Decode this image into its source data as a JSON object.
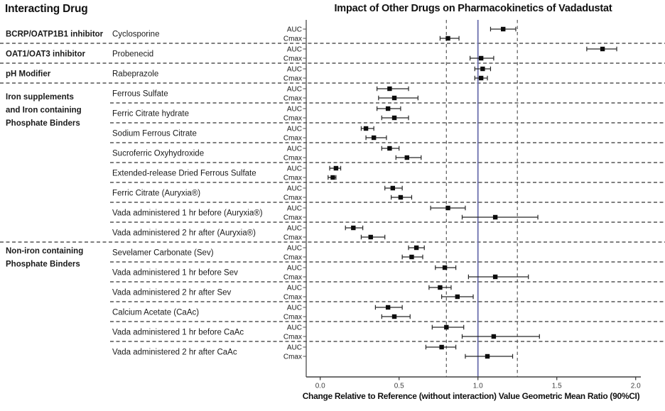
{
  "header": {
    "left_title": "Interacting Drug",
    "plot_title": "Impact of Other Drugs on Pharmacokinetics of Vadadustat"
  },
  "axis": {
    "label": "Change Relative to Reference (without interaction) Value Geometric Mean Ratio (90%CI)",
    "ticks": [
      "0.0",
      "0.5",
      "1.0",
      "1.5",
      "2.0"
    ],
    "tick_values": [
      0,
      0.5,
      1.0,
      1.5,
      2.0
    ],
    "xlim": [
      0,
      2.1
    ]
  },
  "row_labels": {
    "auc": "AUC",
    "cmax": "Cmax"
  },
  "colors": {
    "text": "#1a1a1a",
    "tick_text": "#404040",
    "axis_line": "#404040",
    "separator": "#333333",
    "dashed_reference": "#595959",
    "solid_reference": "#6b6fad",
    "marker": "#0d0d0d",
    "ci_bar": "#262626"
  },
  "chart_data": {
    "type": "forest",
    "title": "Impact of Other Drugs on Pharmacokinetics of Vadadustat",
    "xlabel": "Change Relative to Reference (without interaction) Value Geometric Mean Ratio (90%CI)",
    "xlim": [
      0,
      2.1
    ],
    "x_ticks": [
      0,
      0.5,
      1.0,
      1.5,
      2.0
    ],
    "reference_lines": {
      "solid_at": 1.0,
      "dashed_at": [
        0.8,
        1.25
      ]
    },
    "metrics_per_drug": [
      "AUC",
      "Cmax"
    ],
    "groups": [
      {
        "category": "BCRP/OATP1B1 inhibitor",
        "category_lines": [
          "BCRP/OATP1B1 inhibitor"
        ],
        "drugs": [
          {
            "name": "Cyclosporine",
            "auc": {
              "est": 1.16,
              "lo": 1.08,
              "hi": 1.24
            },
            "cmax": {
              "est": 0.81,
              "lo": 0.76,
              "hi": 0.88
            }
          }
        ]
      },
      {
        "category": "OAT1/OAT3 inhibitor",
        "category_lines": [
          "OAT1/OAT3 inhibitor"
        ],
        "drugs": [
          {
            "name": "Probenecid",
            "auc": {
              "est": 1.79,
              "lo": 1.69,
              "hi": 1.88
            },
            "cmax": {
              "est": 1.02,
              "lo": 0.95,
              "hi": 1.1
            }
          }
        ]
      },
      {
        "category": "pH Modifier",
        "category_lines": [
          "pH Modifier"
        ],
        "drugs": [
          {
            "name": "Rabeprazole",
            "auc": {
              "est": 1.03,
              "lo": 0.98,
              "hi": 1.08
            },
            "cmax": {
              "est": 1.02,
              "lo": 0.98,
              "hi": 1.06
            }
          }
        ]
      },
      {
        "category": "Iron supplements and Iron containing Phosphate Binders",
        "category_lines": [
          "Iron supplements",
          "and Iron containing",
          "Phosphate Binders"
        ],
        "drugs": [
          {
            "name": "Ferrous Sulfate",
            "auc": {
              "est": 0.44,
              "lo": 0.36,
              "hi": 0.56
            },
            "cmax": {
              "est": 0.47,
              "lo": 0.37,
              "hi": 0.62
            }
          },
          {
            "name": "Ferric Citrate hydrate",
            "auc": {
              "est": 0.43,
              "lo": 0.36,
              "hi": 0.51
            },
            "cmax": {
              "est": 0.47,
              "lo": 0.39,
              "hi": 0.56
            }
          },
          {
            "name": "Sodium Ferrous Citrate",
            "auc": {
              "est": 0.29,
              "lo": 0.26,
              "hi": 0.34
            },
            "cmax": {
              "est": 0.34,
              "lo": 0.29,
              "hi": 0.42
            }
          },
          {
            "name": "Sucroferric Oxyhydroxide",
            "auc": {
              "est": 0.44,
              "lo": 0.39,
              "hi": 0.5
            },
            "cmax": {
              "est": 0.55,
              "lo": 0.48,
              "hi": 0.64
            }
          },
          {
            "name": "Extended-release Dried Ferrous Sulfate",
            "auc": {
              "est": 0.1,
              "lo": 0.06,
              "hi": 0.13
            },
            "cmax": {
              "est": 0.08,
              "lo": 0.05,
              "hi": 0.1
            }
          },
          {
            "name": "Ferric Citrate (Auryxia®)",
            "auc": {
              "est": 0.46,
              "lo": 0.41,
              "hi": 0.52
            },
            "cmax": {
              "est": 0.51,
              "lo": 0.45,
              "hi": 0.58
            }
          },
          {
            "name": "Vada administered 1 hr before (Auryxia®)",
            "auc": {
              "est": 0.81,
              "lo": 0.7,
              "hi": 0.92
            },
            "cmax": {
              "est": 1.11,
              "lo": 0.9,
              "hi": 1.38
            }
          },
          {
            "name": "Vada administered 2 hr after (Auryxia®)",
            "auc": {
              "est": 0.21,
              "lo": 0.16,
              "hi": 0.27
            },
            "cmax": {
              "est": 0.32,
              "lo": 0.26,
              "hi": 0.41
            }
          }
        ]
      },
      {
        "category": "Non-iron containing Phosphate Binders",
        "category_lines": [
          "Non-iron containing",
          "Phosphate Binders"
        ],
        "drugs": [
          {
            "name": "Sevelamer Carbonate (Sev)",
            "auc": {
              "est": 0.61,
              "lo": 0.56,
              "hi": 0.66
            },
            "cmax": {
              "est": 0.58,
              "lo": 0.52,
              "hi": 0.65
            }
          },
          {
            "name": "Vada administered 1 hr before Sev",
            "auc": {
              "est": 0.79,
              "lo": 0.73,
              "hi": 0.86
            },
            "cmax": {
              "est": 1.11,
              "lo": 0.94,
              "hi": 1.32
            }
          },
          {
            "name": "Vada administered 2 hr after Sev",
            "auc": {
              "est": 0.76,
              "lo": 0.69,
              "hi": 0.83
            },
            "cmax": {
              "est": 0.87,
              "lo": 0.77,
              "hi": 0.97
            }
          },
          {
            "name": "Calcium Acetate (CaAc)",
            "auc": {
              "est": 0.43,
              "lo": 0.35,
              "hi": 0.52
            },
            "cmax": {
              "est": 0.47,
              "lo": 0.39,
              "hi": 0.57
            }
          },
          {
            "name": "Vada administered 1 hr before CaAc",
            "auc": {
              "est": 0.8,
              "lo": 0.71,
              "hi": 0.91
            },
            "cmax": {
              "est": 1.1,
              "lo": 0.9,
              "hi": 1.39
            }
          },
          {
            "name": "Vada administered 2 hr after CaAc",
            "auc": {
              "est": 0.77,
              "lo": 0.67,
              "hi": 0.86
            },
            "cmax": {
              "est": 1.06,
              "lo": 0.92,
              "hi": 1.22
            }
          }
        ]
      }
    ]
  }
}
